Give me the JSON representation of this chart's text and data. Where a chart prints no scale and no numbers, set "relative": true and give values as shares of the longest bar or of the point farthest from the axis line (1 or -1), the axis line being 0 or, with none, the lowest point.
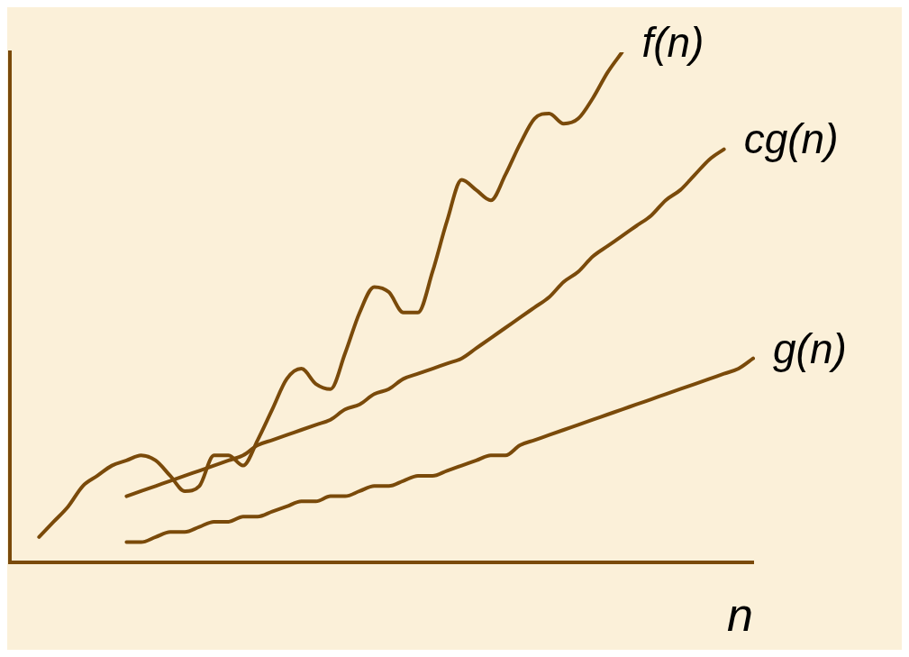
{
  "chart_data": {
    "type": "line",
    "relative": true,
    "xlabel": "n",
    "grid": false,
    "legend": false,
    "marker": "none",
    "line_style": "solid",
    "categories": [
      null,
      null,
      null,
      null,
      null,
      null,
      null,
      null,
      null,
      null,
      null,
      null,
      null,
      null,
      null,
      null,
      null,
      null,
      null,
      null,
      null,
      null,
      null,
      null,
      null,
      null,
      null,
      null,
      null,
      null,
      null,
      null,
      null,
      null,
      null,
      null,
      null,
      null,
      null,
      null,
      null,
      null,
      null,
      null,
      null,
      null,
      null,
      null,
      null,
      null,
      null,
      null
    ],
    "series": [
      {
        "name": "f(n)",
        "color": "#7a4a0a",
        "values": [
          null,
          null,
          0.05,
          0.08,
          0.11,
          0.15,
          0.17,
          0.19,
          0.2,
          0.21,
          0.2,
          0.17,
          0.14,
          0.15,
          0.21,
          0.21,
          0.19,
          0.24,
          0.3,
          0.36,
          0.38,
          0.35,
          0.34,
          0.41,
          0.49,
          0.54,
          0.53,
          0.49,
          0.49,
          0.57,
          0.67,
          0.75,
          0.73,
          0.71,
          0.76,
          0.82,
          0.87,
          0.88,
          0.86,
          0.87,
          0.91,
          0.96,
          1,
          null,
          null,
          null,
          null,
          null,
          null,
          null,
          null,
          null
        ]
      },
      {
        "name": "cg(n)",
        "color": "#7a4a0a",
        "values": [
          null,
          null,
          null,
          null,
          null,
          null,
          null,
          null,
          0.13,
          0.14,
          0.15,
          0.16,
          0.17,
          0.18,
          0.19,
          0.2,
          0.21,
          0.23,
          0.24,
          0.25,
          0.26,
          0.27,
          0.28,
          0.3,
          0.31,
          0.33,
          0.34,
          0.36,
          0.37,
          0.38,
          0.39,
          0.4,
          0.42,
          0.44,
          0.46,
          0.48,
          0.5,
          0.52,
          0.55,
          0.57,
          0.6,
          0.62,
          0.64,
          0.66,
          0.68,
          0.71,
          0.73,
          0.76,
          0.79,
          0.81,
          null,
          null
        ]
      },
      {
        "name": "g(n)",
        "color": "#7a4a0a",
        "values": [
          null,
          null,
          null,
          null,
          null,
          null,
          null,
          null,
          0.04,
          0.04,
          0.05,
          0.06,
          0.06,
          0.07,
          0.08,
          0.08,
          0.09,
          0.09,
          0.1,
          0.11,
          0.12,
          0.12,
          0.13,
          0.13,
          0.14,
          0.15,
          0.15,
          0.16,
          0.17,
          0.17,
          0.18,
          0.19,
          0.2,
          0.21,
          0.21,
          0.23,
          0.24,
          0.25,
          0.26,
          0.27,
          0.28,
          0.29,
          0.3,
          0.31,
          0.32,
          0.33,
          0.34,
          0.35,
          0.36,
          0.37,
          0.38,
          0.4
        ]
      }
    ]
  }
}
